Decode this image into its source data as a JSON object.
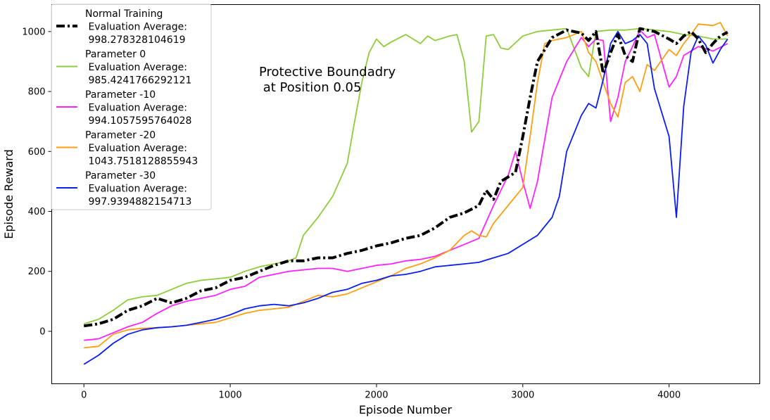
{
  "chart_data": {
    "type": "line",
    "title": "",
    "xlabel": "Episode Number",
    "ylabel": "Episode Reward",
    "xlim": [
      -220,
      4620
    ],
    "ylim": [
      -175,
      1090
    ],
    "xticks": [
      0,
      1000,
      2000,
      3000,
      4000
    ],
    "yticks": [
      0,
      200,
      400,
      600,
      800,
      1000
    ],
    "grid": false,
    "legend_position": "top-left",
    "annotation": [
      "Protective Boundadry",
      " at Position 0.05"
    ],
    "series": [
      {
        "name": "Normal Training\n Evaluation Average:\n 998.278328104619",
        "color": "#000000",
        "style": "dashdot",
        "points": [
          [
            0,
            18
          ],
          [
            100,
            25
          ],
          [
            200,
            40
          ],
          [
            300,
            70
          ],
          [
            400,
            85
          ],
          [
            500,
            110
          ],
          [
            600,
            95
          ],
          [
            700,
            110
          ],
          [
            800,
            135
          ],
          [
            900,
            145
          ],
          [
            1000,
            170
          ],
          [
            1100,
            180
          ],
          [
            1200,
            200
          ],
          [
            1300,
            220
          ],
          [
            1400,
            235
          ],
          [
            1500,
            235
          ],
          [
            1600,
            245
          ],
          [
            1700,
            245
          ],
          [
            1800,
            260
          ],
          [
            1900,
            270
          ],
          [
            2000,
            285
          ],
          [
            2100,
            295
          ],
          [
            2200,
            310
          ],
          [
            2300,
            320
          ],
          [
            2400,
            345
          ],
          [
            2500,
            380
          ],
          [
            2600,
            395
          ],
          [
            2700,
            420
          ],
          [
            2750,
            470
          ],
          [
            2800,
            440
          ],
          [
            2850,
            500
          ],
          [
            2900,
            515
          ],
          [
            2950,
            530
          ],
          [
            3000,
            650
          ],
          [
            3050,
            780
          ],
          [
            3100,
            900
          ],
          [
            3200,
            980
          ],
          [
            3300,
            1005
          ],
          [
            3400,
            995
          ],
          [
            3450,
            970
          ],
          [
            3500,
            1000
          ],
          [
            3550,
            860
          ],
          [
            3600,
            930
          ],
          [
            3650,
            990
          ],
          [
            3700,
            920
          ],
          [
            3750,
            900
          ],
          [
            3800,
            1010
          ],
          [
            3900,
            1000
          ],
          [
            4000,
            975
          ],
          [
            4050,
            960
          ],
          [
            4100,
            985
          ],
          [
            4150,
            1000
          ],
          [
            4200,
            975
          ],
          [
            4250,
            930
          ],
          [
            4300,
            960
          ],
          [
            4350,
            985
          ],
          [
            4400,
            998
          ]
        ]
      },
      {
        "name": "Parameter 0\n Evaluation Average:\n 985.4241766292121",
        "color": "#8ecc3a",
        "style": "solid",
        "points": [
          [
            0,
            25
          ],
          [
            100,
            40
          ],
          [
            200,
            70
          ],
          [
            300,
            105
          ],
          [
            400,
            115
          ],
          [
            500,
            120
          ],
          [
            600,
            140
          ],
          [
            700,
            160
          ],
          [
            800,
            170
          ],
          [
            900,
            175
          ],
          [
            1000,
            180
          ],
          [
            1100,
            200
          ],
          [
            1200,
            215
          ],
          [
            1300,
            225
          ],
          [
            1400,
            235
          ],
          [
            1450,
            245
          ],
          [
            1500,
            320
          ],
          [
            1600,
            380
          ],
          [
            1700,
            450
          ],
          [
            1800,
            560
          ],
          [
            1850,
            700
          ],
          [
            1900,
            830
          ],
          [
            1950,
            930
          ],
          [
            2000,
            975
          ],
          [
            2050,
            950
          ],
          [
            2100,
            965
          ],
          [
            2200,
            990
          ],
          [
            2300,
            960
          ],
          [
            2350,
            985
          ],
          [
            2400,
            970
          ],
          [
            2500,
            985
          ],
          [
            2550,
            990
          ],
          [
            2600,
            900
          ],
          [
            2650,
            665
          ],
          [
            2700,
            700
          ],
          [
            2750,
            985
          ],
          [
            2800,
            990
          ],
          [
            2850,
            945
          ],
          [
            2900,
            940
          ],
          [
            3000,
            985
          ],
          [
            3100,
            1000
          ],
          [
            3200,
            1005
          ],
          [
            3300,
            1010
          ],
          [
            3400,
            880
          ],
          [
            3450,
            850
          ],
          [
            3500,
            1000
          ],
          [
            3600,
            1005
          ],
          [
            3700,
            1005
          ],
          [
            3800,
            1010
          ],
          [
            3900,
            1005
          ],
          [
            4000,
            1000
          ],
          [
            4100,
            990
          ],
          [
            4200,
            985
          ],
          [
            4300,
            975
          ],
          [
            4400,
            975
          ]
        ]
      },
      {
        "name": "Parameter -10\n Evaluation Average:\n 994.1057595764028",
        "color": "#ff22ff",
        "style": "solid",
        "points": [
          [
            0,
            -30
          ],
          [
            100,
            -25
          ],
          [
            200,
            -5
          ],
          [
            300,
            15
          ],
          [
            400,
            30
          ],
          [
            500,
            60
          ],
          [
            600,
            85
          ],
          [
            700,
            100
          ],
          [
            800,
            110
          ],
          [
            900,
            120
          ],
          [
            1000,
            140
          ],
          [
            1100,
            150
          ],
          [
            1200,
            180
          ],
          [
            1300,
            190
          ],
          [
            1400,
            200
          ],
          [
            1500,
            205
          ],
          [
            1600,
            210
          ],
          [
            1700,
            210
          ],
          [
            1800,
            200
          ],
          [
            1900,
            210
          ],
          [
            2000,
            220
          ],
          [
            2100,
            225
          ],
          [
            2200,
            235
          ],
          [
            2300,
            240
          ],
          [
            2400,
            250
          ],
          [
            2500,
            270
          ],
          [
            2600,
            290
          ],
          [
            2700,
            310
          ],
          [
            2800,
            420
          ],
          [
            2900,
            520
          ],
          [
            2950,
            600
          ],
          [
            3000,
            500
          ],
          [
            3050,
            410
          ],
          [
            3100,
            500
          ],
          [
            3150,
            640
          ],
          [
            3200,
            780
          ],
          [
            3300,
            900
          ],
          [
            3400,
            980
          ],
          [
            3450,
            950
          ],
          [
            3500,
            975
          ],
          [
            3550,
            970
          ],
          [
            3600,
            700
          ],
          [
            3650,
            780
          ],
          [
            3700,
            900
          ],
          [
            3750,
            950
          ],
          [
            3800,
            1005
          ],
          [
            3850,
            980
          ],
          [
            3900,
            990
          ],
          [
            4000,
            815
          ],
          [
            4050,
            850
          ],
          [
            4100,
            920
          ],
          [
            4200,
            950
          ],
          [
            4300,
            935
          ],
          [
            4400,
            960
          ]
        ]
      },
      {
        "name": "Parameter -20\n Evaluation Average:\n 1043.7518128855943",
        "color": "#ff9f10",
        "style": "solid",
        "points": [
          [
            0,
            -55
          ],
          [
            100,
            -50
          ],
          [
            200,
            -10
          ],
          [
            300,
            5
          ],
          [
            400,
            10
          ],
          [
            500,
            12
          ],
          [
            600,
            15
          ],
          [
            700,
            20
          ],
          [
            800,
            25
          ],
          [
            900,
            30
          ],
          [
            1000,
            45
          ],
          [
            1100,
            60
          ],
          [
            1200,
            70
          ],
          [
            1300,
            75
          ],
          [
            1400,
            80
          ],
          [
            1500,
            100
          ],
          [
            1600,
            120
          ],
          [
            1700,
            115
          ],
          [
            1800,
            125
          ],
          [
            1900,
            145
          ],
          [
            2000,
            165
          ],
          [
            2100,
            185
          ],
          [
            2200,
            210
          ],
          [
            2300,
            225
          ],
          [
            2400,
            245
          ],
          [
            2500,
            270
          ],
          [
            2600,
            320
          ],
          [
            2650,
            335
          ],
          [
            2700,
            320
          ],
          [
            2750,
            315
          ],
          [
            2800,
            360
          ],
          [
            2900,
            420
          ],
          [
            3000,
            480
          ],
          [
            3050,
            650
          ],
          [
            3100,
            830
          ],
          [
            3150,
            960
          ],
          [
            3200,
            970
          ],
          [
            3300,
            980
          ],
          [
            3400,
            1000
          ],
          [
            3450,
            930
          ],
          [
            3500,
            900
          ],
          [
            3550,
            830
          ],
          [
            3600,
            760
          ],
          [
            3650,
            715
          ],
          [
            3700,
            830
          ],
          [
            3750,
            850
          ],
          [
            3800,
            800
          ],
          [
            3850,
            890
          ],
          [
            3900,
            870
          ],
          [
            4000,
            940
          ],
          [
            4050,
            920
          ],
          [
            4100,
            960
          ],
          [
            4150,
            990
          ],
          [
            4200,
            1025
          ],
          [
            4300,
            1020
          ],
          [
            4350,
            1030
          ],
          [
            4400,
            985
          ]
        ]
      },
      {
        "name": "Parameter -30\n Evaluation Average:\n 997.9394882154713",
        "color": "#0a1ef2",
        "style": "solid",
        "points": [
          [
            0,
            -110
          ],
          [
            100,
            -80
          ],
          [
            200,
            -40
          ],
          [
            300,
            -10
          ],
          [
            400,
            5
          ],
          [
            500,
            12
          ],
          [
            600,
            15
          ],
          [
            700,
            20
          ],
          [
            800,
            30
          ],
          [
            900,
            40
          ],
          [
            1000,
            55
          ],
          [
            1100,
            75
          ],
          [
            1200,
            85
          ],
          [
            1300,
            90
          ],
          [
            1400,
            85
          ],
          [
            1500,
            95
          ],
          [
            1600,
            110
          ],
          [
            1700,
            130
          ],
          [
            1800,
            140
          ],
          [
            1900,
            160
          ],
          [
            2000,
            170
          ],
          [
            2100,
            185
          ],
          [
            2200,
            190
          ],
          [
            2300,
            200
          ],
          [
            2400,
            215
          ],
          [
            2500,
            220
          ],
          [
            2600,
            225
          ],
          [
            2700,
            230
          ],
          [
            2800,
            245
          ],
          [
            2900,
            260
          ],
          [
            3000,
            290
          ],
          [
            3100,
            320
          ],
          [
            3200,
            380
          ],
          [
            3250,
            450
          ],
          [
            3300,
            600
          ],
          [
            3400,
            720
          ],
          [
            3450,
            760
          ],
          [
            3500,
            745
          ],
          [
            3550,
            840
          ],
          [
            3600,
            960
          ],
          [
            3650,
            1000
          ],
          [
            3700,
            960
          ],
          [
            3750,
            970
          ],
          [
            3800,
            990
          ],
          [
            3850,
            960
          ],
          [
            3900,
            810
          ],
          [
            4000,
            650
          ],
          [
            4050,
            380
          ],
          [
            4100,
            750
          ],
          [
            4150,
            930
          ],
          [
            4200,
            985
          ],
          [
            4250,
            955
          ],
          [
            4300,
            895
          ],
          [
            4350,
            940
          ],
          [
            4400,
            975
          ]
        ]
      }
    ]
  }
}
